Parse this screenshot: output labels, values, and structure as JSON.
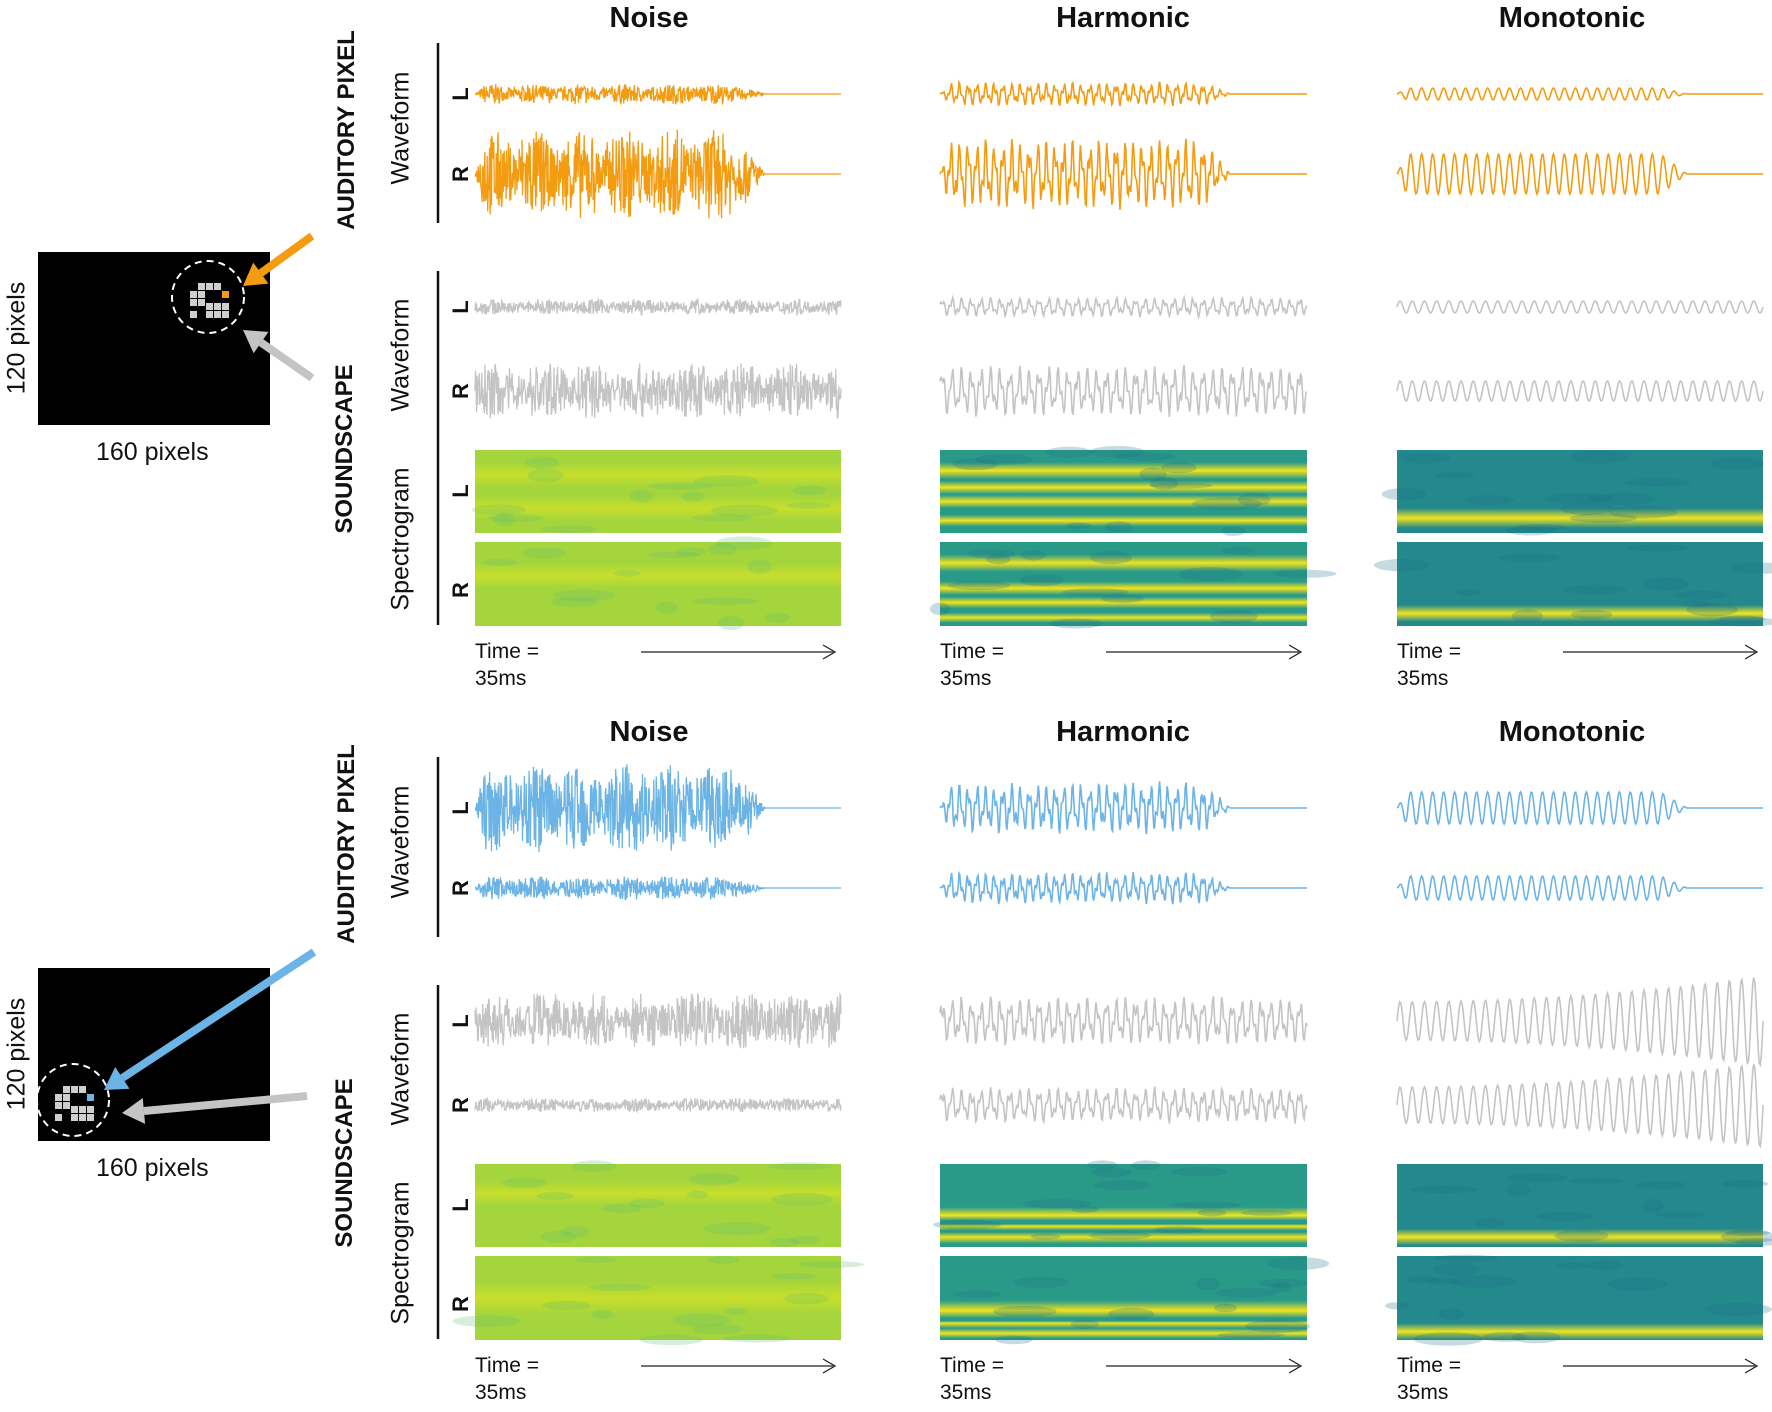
{
  "columns": [
    "Noise",
    "Harmonic",
    "Monotonic"
  ],
  "row_labels": {
    "auditory_pixel": "AUDITORY PIXEL",
    "soundscape": "SOUNDSCAPE",
    "waveform": "Waveform",
    "spectrogram": "Spectrogram",
    "left": "L",
    "right": "R"
  },
  "time": {
    "label": "Time =",
    "value": "35ms"
  },
  "image": {
    "width_label": "160 pixels",
    "height_label": "120 pixels"
  },
  "colors": {
    "top_pixel": "#f39c12",
    "bottom_pixel": "#6cb4e6",
    "soundscape": "#c4c4c4",
    "spectro_yellow": "#f2e41e",
    "spectro_teal": "#23898c",
    "spectro_green": "#a4d53c"
  }
}
